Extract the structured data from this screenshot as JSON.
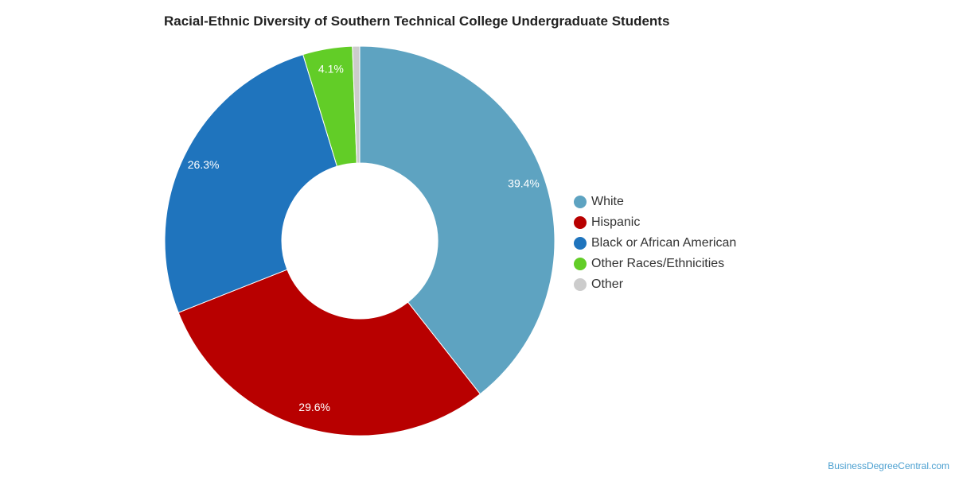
{
  "title": "Racial-Ethnic Diversity of Southern Technical College Undergraduate Students",
  "watermark": "BusinessDegreeCentral.com",
  "chart_data": {
    "type": "pie",
    "subtype": "donut",
    "title": "Racial-Ethnic Diversity of Southern Technical College Undergraduate Students",
    "legend_position": "right",
    "slices": [
      {
        "name": "White",
        "value": 39.4,
        "label": "39.4%",
        "color": "#5ea3c1"
      },
      {
        "name": "Hispanic",
        "value": 29.6,
        "label": "29.6%",
        "color": "#b80000"
      },
      {
        "name": "Black or African American",
        "value": 26.3,
        "label": "26.3%",
        "color": "#1f74bd"
      },
      {
        "name": "Other Races/Ethnicities",
        "value": 4.1,
        "label": "4.1%",
        "color": "#62cd27"
      },
      {
        "name": "Other",
        "value": 0.6,
        "label": "",
        "color": "#cccccc"
      }
    ]
  }
}
